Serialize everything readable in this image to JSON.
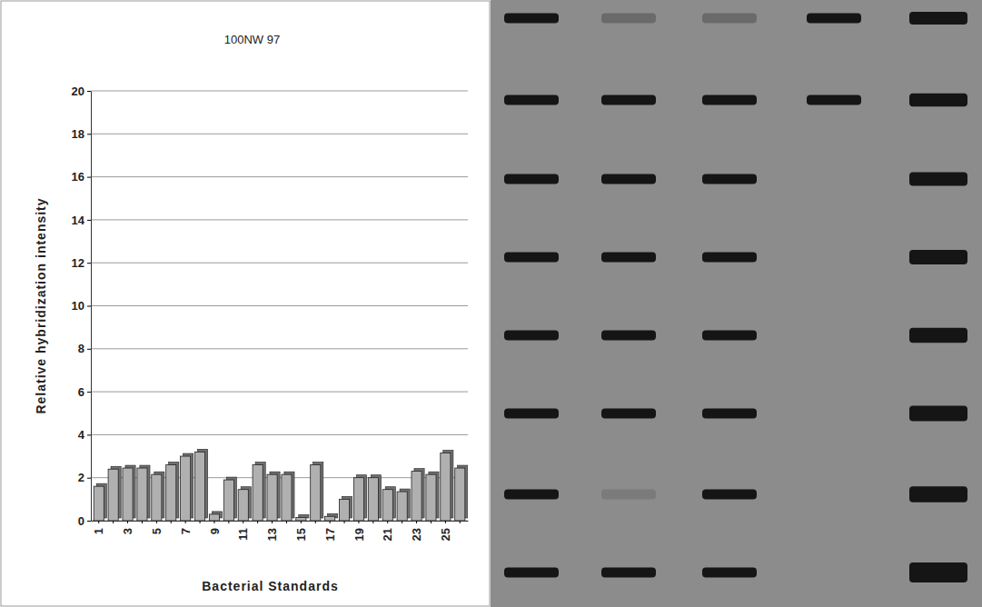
{
  "chart_data": {
    "type": "bar",
    "title": "100NW 97",
    "y_label": "Relative hybridization intensity",
    "x_label": "Bacterial Standards",
    "categories": [
      "1",
      null,
      "3",
      null,
      "5",
      null,
      "7",
      null,
      "9",
      null,
      "11",
      null,
      "13",
      null,
      "15",
      null,
      "17",
      null,
      "19",
      null,
      "21",
      null,
      "23",
      null,
      "25",
      null
    ],
    "values": [
      1.6,
      2.4,
      2.45,
      2.45,
      2.15,
      2.6,
      3.0,
      3.2,
      0.3,
      1.9,
      1.45,
      2.6,
      2.15,
      2.15,
      0.15,
      2.6,
      0.2,
      1.0,
      2.0,
      2.0,
      1.45,
      1.35,
      2.3,
      2.15,
      3.15,
      2.45
    ],
    "color": "#b0b0b0",
    "ylim": [
      0,
      20
    ],
    "yticks": [
      0,
      2,
      4,
      6,
      8,
      10,
      12,
      14,
      16,
      18,
      20
    ],
    "grid": true
  }
}
